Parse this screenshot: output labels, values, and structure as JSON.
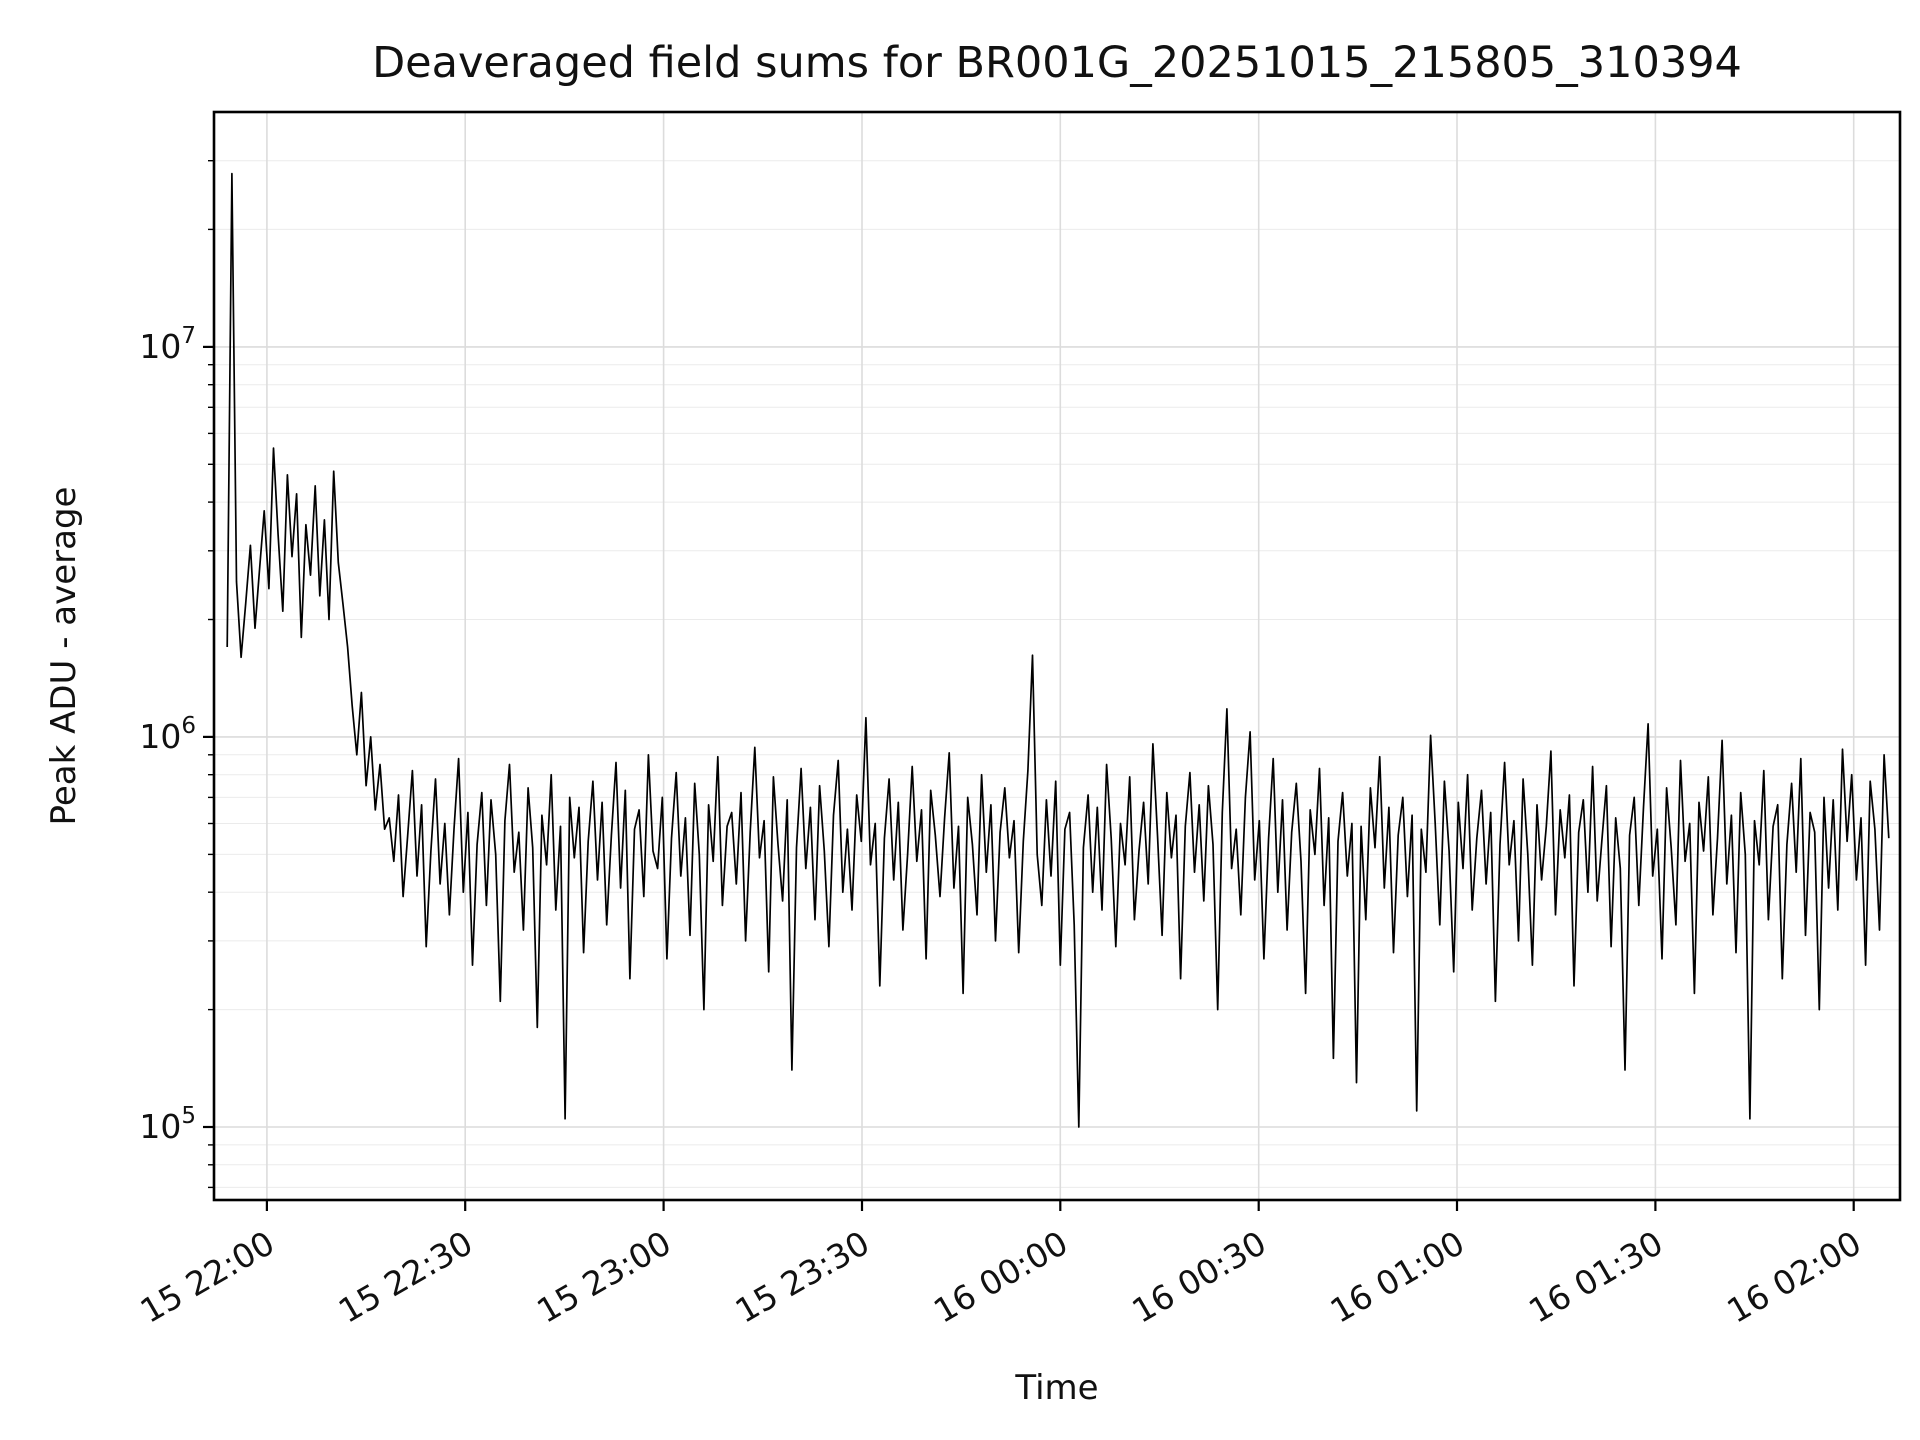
{
  "figure": {
    "title": "Deaveraged field sums for BR001G_20251015_215805_310394",
    "xlabel": "Time",
    "ylabel": "Peak ADU - average"
  },
  "style": {
    "background": "#ffffff",
    "line_color": "#000000",
    "axis_color": "#000000",
    "text_color": "#111111",
    "grid_major_color": "#dcdcdc",
    "grid_minor_color": "#ebebeb"
  },
  "chart_data": {
    "type": "line",
    "title": "Deaveraged field sums for BR001G_20251015_215805_310394",
    "xlabel": "Time",
    "ylabel": "Peak ADU - average",
    "yscale": "log",
    "grid": true,
    "legend": false,
    "ylim": [
      65000,
      40000000
    ],
    "xlim_minutes": [
      -2,
      253
    ],
    "y_ticks": [
      {
        "value": 100000,
        "base": "10",
        "exponent": "5"
      },
      {
        "value": 1000000,
        "base": "10",
        "exponent": "6"
      },
      {
        "value": 10000000,
        "base": "10",
        "exponent": "7"
      }
    ],
    "x_ticks": [
      {
        "t": 6,
        "label": "15 22:00"
      },
      {
        "t": 36,
        "label": "15 22:30"
      },
      {
        "t": 66,
        "label": "15 23:00"
      },
      {
        "t": 96,
        "label": "15 23:30"
      },
      {
        "t": 126,
        "label": "16 00:00"
      },
      {
        "t": 156,
        "label": "16 00:30"
      },
      {
        "t": 186,
        "label": "16 01:00"
      },
      {
        "t": 216,
        "label": "16 01:30"
      },
      {
        "t": 246,
        "label": "16 02:00"
      }
    ],
    "series": [
      {
        "name": "peak-adu-minus-average",
        "color": "#000000",
        "t_start_minutes": 0,
        "t_step_minutes": 0.7,
        "value_unit": 100000,
        "values": [
          17,
          278,
          25,
          16,
          22,
          31,
          19,
          27,
          38,
          24,
          55,
          33,
          21,
          47,
          29,
          42,
          18,
          35,
          26,
          44,
          23,
          36,
          20,
          48,
          28,
          22,
          17,
          12,
          9,
          13,
          7.5,
          10,
          6.5,
          8.5,
          5.8,
          6.2,
          4.8,
          7.1,
          3.9,
          5.6,
          8.2,
          4.4,
          6.7,
          2.9,
          5.1,
          7.8,
          4.2,
          6.0,
          3.5,
          5.8,
          8.8,
          4.0,
          6.4,
          2.6,
          5.3,
          7.2,
          3.7,
          6.9,
          5.0,
          2.1,
          6.1,
          8.5,
          4.5,
          5.7,
          3.2,
          7.4,
          5.2,
          1.8,
          6.3,
          4.7,
          8.0,
          3.6,
          5.9,
          1.05,
          7.0,
          4.9,
          6.6,
          2.8,
          5.4,
          7.7,
          4.3,
          6.8,
          3.3,
          5.6,
          8.6,
          4.1,
          7.3,
          2.4,
          5.8,
          6.5,
          3.9,
          9.0,
          5.1,
          4.6,
          7.0,
          2.7,
          5.5,
          8.1,
          4.4,
          6.2,
          3.1,
          7.6,
          5.0,
          2.0,
          6.7,
          4.8,
          8.9,
          3.7,
          5.9,
          6.4,
          4.2,
          7.2,
          3.0,
          5.7,
          9.4,
          4.9,
          6.1,
          2.5,
          7.9,
          5.3,
          3.8,
          6.9,
          1.4,
          5.2,
          8.3,
          4.6,
          6.6,
          3.4,
          7.5,
          5.1,
          2.9,
          6.3,
          8.7,
          4.0,
          5.8,
          3.6,
          7.1,
          5.4,
          11.2,
          4.7,
          6.0,
          2.3,
          5.5,
          7.8,
          4.3,
          6.8,
          3.2,
          5.0,
          8.4,
          4.8,
          6.5,
          2.7,
          7.3,
          5.6,
          3.9,
          6.2,
          9.1,
          4.1,
          5.9,
          2.2,
          7.0,
          5.3,
          3.5,
          8.0,
          4.5,
          6.7,
          3.0,
          5.7,
          7.4,
          4.9,
          6.1,
          2.8,
          5.4,
          8.2,
          16.2,
          5.0,
          3.7,
          6.9,
          4.4,
          7.7,
          2.6,
          5.8,
          6.4,
          3.3,
          1.0,
          5.2,
          7.1,
          4.0,
          6.6,
          3.6,
          8.5,
          5.5,
          2.9,
          6.0,
          4.7,
          7.9,
          3.4,
          5.1,
          6.8,
          4.2,
          9.6,
          5.6,
          3.1,
          7.2,
          4.9,
          6.3,
          2.4,
          5.9,
          8.1,
          4.5,
          6.7,
          3.8,
          7.5,
          5.3,
          2.0,
          6.4,
          11.8,
          4.6,
          5.8,
          3.5,
          7.0,
          10.3,
          4.3,
          6.1,
          2.7,
          5.5,
          8.8,
          4.0,
          6.9,
          3.2,
          5.7,
          7.6,
          4.8,
          2.2,
          6.5,
          5.0,
          8.3,
          3.7,
          6.2,
          1.5,
          5.4,
          7.2,
          4.4,
          6.0,
          1.3,
          5.9,
          3.4,
          7.4,
          5.2,
          8.9,
          4.1,
          6.6,
          2.8,
          5.6,
          7.0,
          3.9,
          6.3,
          1.1,
          5.8,
          4.5,
          10.1,
          6.0,
          3.3,
          7.7,
          5.1,
          2.5,
          6.8,
          4.6,
          8.0,
          3.6,
          5.5,
          7.3,
          4.2,
          6.4,
          2.1,
          5.3,
          8.6,
          4.7,
          6.1,
          3.0,
          7.8,
          5.0,
          2.6,
          6.7,
          4.3,
          5.9,
          9.2,
          3.5,
          6.5,
          4.9,
          7.1,
          2.3,
          5.7,
          6.9,
          4.0,
          8.4,
          3.8,
          5.4,
          7.5,
          2.9,
          6.2,
          4.6,
          1.4,
          5.6,
          7.0,
          3.7,
          6.6,
          10.8,
          4.4,
          5.8,
          2.7,
          7.4,
          5.2,
          3.3,
          8.7,
          4.8,
          6.0,
          2.2,
          6.8,
          5.1,
          7.9,
          3.5,
          5.5,
          9.8,
          4.2,
          6.3,
          2.8,
          7.2,
          5.0,
          1.05,
          6.1,
          4.7,
          8.2,
          3.4,
          5.9,
          6.7,
          2.4,
          5.3,
          7.6,
          4.5,
          8.8,
          3.1,
          6.4,
          5.7,
          2.0,
          7.0,
          4.1,
          6.9,
          3.6,
          9.3,
          5.4,
          8.0,
          4.3,
          6.2,
          2.6,
          7.7,
          5.8,
          3.2,
          9.0,
          5.5
        ]
      }
    ]
  }
}
